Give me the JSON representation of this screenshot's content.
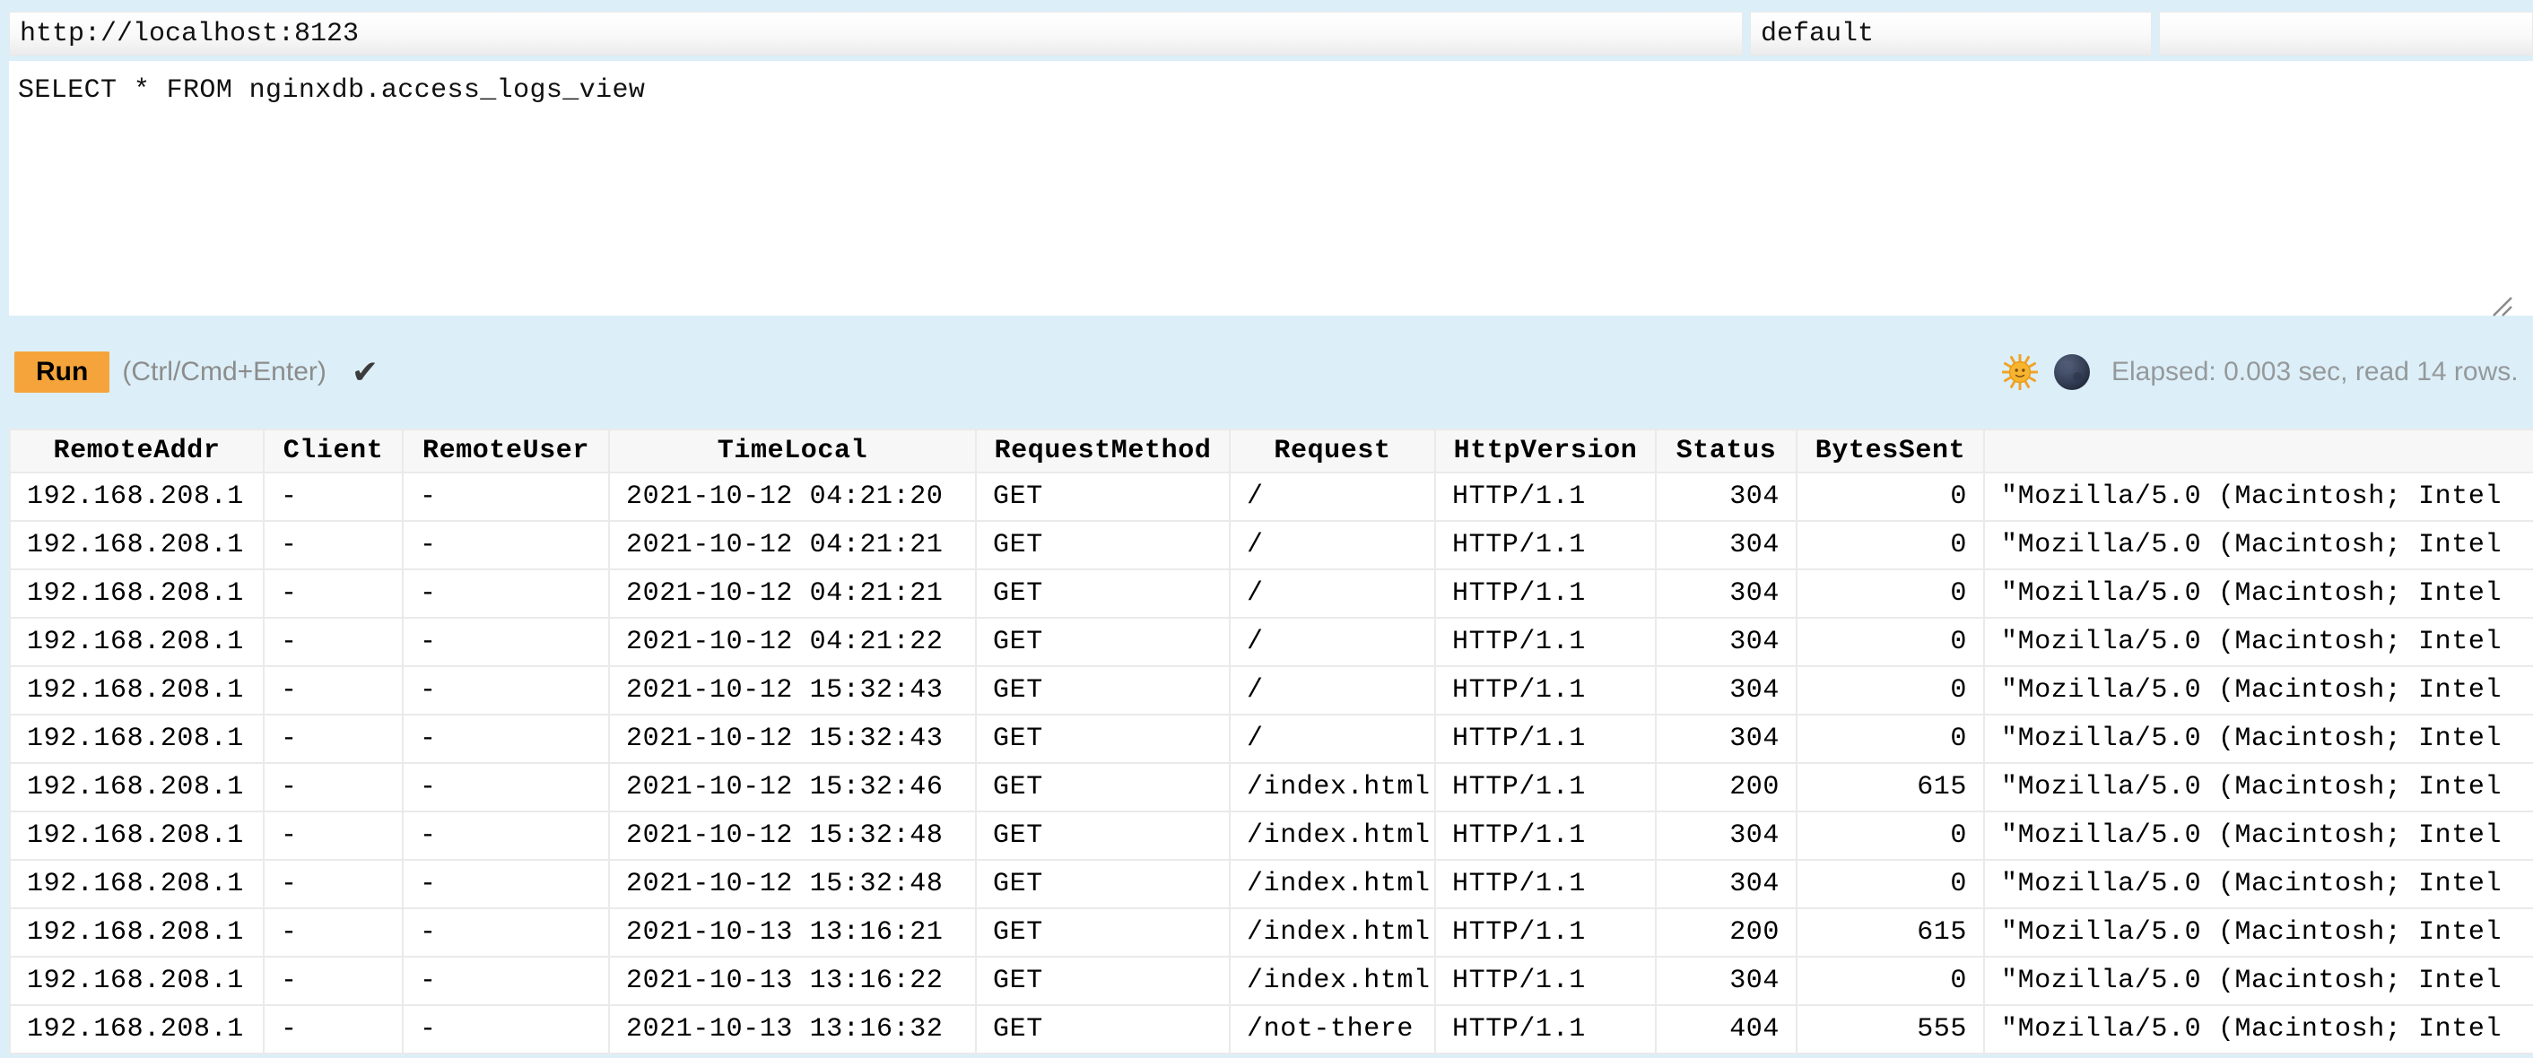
{
  "connection": {
    "url_value": "http://localhost:8123",
    "user_value": "default",
    "password_value": ""
  },
  "editor": {
    "query": "SELECT * FROM nginxdb.access_logs_view"
  },
  "toolbar": {
    "run_label": "Run",
    "shortcut_hint": "(Ctrl/Cmd+Enter)",
    "success_check": "✔",
    "light_theme_icon": "sun-with-face-emoji",
    "dark_theme_icon": "new-moon-face-emoji",
    "stats": "Elapsed: 0.003 sec, read 14 rows."
  },
  "results": {
    "headers": [
      "RemoteAddr",
      "Client",
      "RemoteUser",
      "TimeLocal",
      "RequestMethod",
      "Request",
      "HttpVersion",
      "Status",
      "BytesSent",
      ""
    ],
    "column_alignments": [
      "left",
      "left",
      "left",
      "left",
      "left",
      "left",
      "left",
      "right",
      "right",
      "left"
    ],
    "rows": [
      [
        "192.168.208.1",
        "-",
        "-",
        "2021-10-12 04:21:20",
        "GET",
        "/",
        "HTTP/1.1",
        "304",
        "0",
        "\"Mozilla/5.0 (Macintosh; Intel"
      ],
      [
        "192.168.208.1",
        "-",
        "-",
        "2021-10-12 04:21:21",
        "GET",
        "/",
        "HTTP/1.1",
        "304",
        "0",
        "\"Mozilla/5.0 (Macintosh; Intel"
      ],
      [
        "192.168.208.1",
        "-",
        "-",
        "2021-10-12 04:21:21",
        "GET",
        "/",
        "HTTP/1.1",
        "304",
        "0",
        "\"Mozilla/5.0 (Macintosh; Intel"
      ],
      [
        "192.168.208.1",
        "-",
        "-",
        "2021-10-12 04:21:22",
        "GET",
        "/",
        "HTTP/1.1",
        "304",
        "0",
        "\"Mozilla/5.0 (Macintosh; Intel"
      ],
      [
        "192.168.208.1",
        "-",
        "-",
        "2021-10-12 15:32:43",
        "GET",
        "/",
        "HTTP/1.1",
        "304",
        "0",
        "\"Mozilla/5.0 (Macintosh; Intel"
      ],
      [
        "192.168.208.1",
        "-",
        "-",
        "2021-10-12 15:32:43",
        "GET",
        "/",
        "HTTP/1.1",
        "304",
        "0",
        "\"Mozilla/5.0 (Macintosh; Intel"
      ],
      [
        "192.168.208.1",
        "-",
        "-",
        "2021-10-12 15:32:46",
        "GET",
        "/index.html",
        "HTTP/1.1",
        "200",
        "615",
        "\"Mozilla/5.0 (Macintosh; Intel"
      ],
      [
        "192.168.208.1",
        "-",
        "-",
        "2021-10-12 15:32:48",
        "GET",
        "/index.html",
        "HTTP/1.1",
        "304",
        "0",
        "\"Mozilla/5.0 (Macintosh; Intel"
      ],
      [
        "192.168.208.1",
        "-",
        "-",
        "2021-10-12 15:32:48",
        "GET",
        "/index.html",
        "HTTP/1.1",
        "304",
        "0",
        "\"Mozilla/5.0 (Macintosh; Intel"
      ],
      [
        "192.168.208.1",
        "-",
        "-",
        "2021-10-13 13:16:21",
        "GET",
        "/index.html",
        "HTTP/1.1",
        "200",
        "615",
        "\"Mozilla/5.0 (Macintosh; Intel"
      ],
      [
        "192.168.208.1",
        "-",
        "-",
        "2021-10-13 13:16:22",
        "GET",
        "/index.html",
        "HTTP/1.1",
        "304",
        "0",
        "\"Mozilla/5.0 (Macintosh; Intel"
      ],
      [
        "192.168.208.1",
        "-",
        "-",
        "2021-10-13 13:16:32",
        "GET",
        "/not-there",
        "HTTP/1.1",
        "404",
        "555",
        "\"Mozilla/5.0 (Macintosh; Intel"
      ]
    ]
  },
  "colors": {
    "page_background": "#DCEFF8",
    "run_button": "#F5A43B",
    "table_header_background": "#F7F7F7",
    "table_border": "#EAEAEA",
    "hint_text": "#8C8C8C",
    "stats_text": "#95999B"
  }
}
